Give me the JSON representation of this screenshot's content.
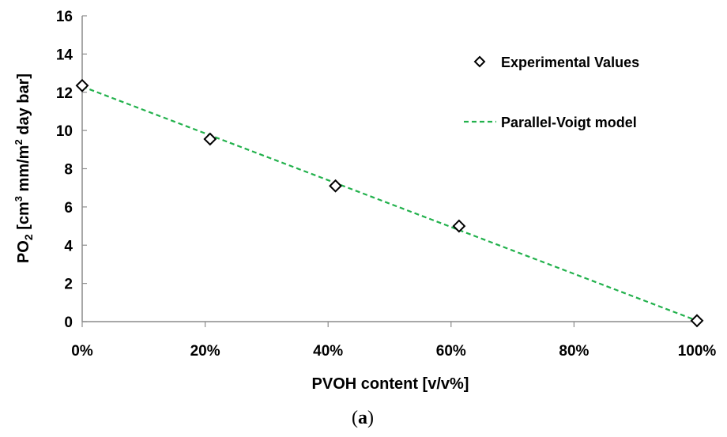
{
  "chart_data": {
    "type": "scatter",
    "xlabel": "PVOH content [v/v%]",
    "ylabel": {
      "base": "PO",
      "sub": "2",
      "part1": " [cm",
      "sup1": "3",
      "part2": " mm/m",
      "sup2": "2",
      "part3": " day bar]"
    },
    "xlim": [
      0,
      100
    ],
    "ylim": [
      0,
      16
    ],
    "x_ticks": [
      "0%",
      "20%",
      "40%",
      "60%",
      "80%",
      "100%"
    ],
    "x_tick_values": [
      0,
      20,
      40,
      60,
      80,
      100
    ],
    "y_ticks": [
      "0",
      "2",
      "4",
      "6",
      "8",
      "10",
      "12",
      "14",
      "16"
    ],
    "y_tick_values": [
      0,
      2,
      4,
      6,
      8,
      10,
      12,
      14,
      16
    ],
    "grid": false,
    "legend_position": "top-right",
    "series": [
      {
        "name": "Experimental Values",
        "kind": "scatter",
        "marker": "diamond",
        "color": "#000000",
        "x": [
          0,
          20.8,
          41.2,
          61.3,
          100
        ],
        "y": [
          12.35,
          9.55,
          7.1,
          5.0,
          0.05
        ],
        "err": [
          0.15,
          0.3,
          0.2,
          0.15,
          0.05
        ]
      },
      {
        "name": "Parallel-Voigt model",
        "kind": "line",
        "style": "dashed",
        "color": "#22b14c",
        "x": [
          0,
          100
        ],
        "y": [
          12.3,
          0.05
        ]
      }
    ]
  },
  "caption": {
    "open": "(",
    "letter": "a",
    "close": ")"
  }
}
